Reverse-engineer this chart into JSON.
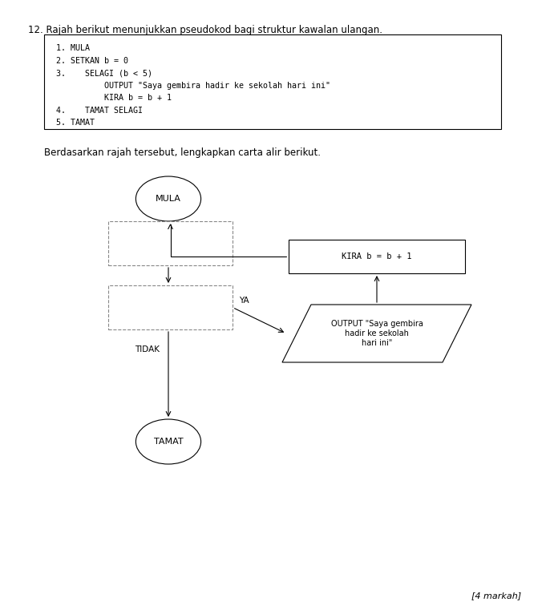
{
  "title_text": "12. Rajah berikut menunjukkan pseudokod bagi struktur kawalan ulangan.",
  "pseudocode_lines": [
    "1. MULA",
    "2. SETKAN b = 0",
    "3.    SELAGI (b < 5)",
    "          OUTPUT \"Saya gembira hadir ke sekolah hari ini\"",
    "          KIRA b = b + 1",
    "4.    TAMAT SELAGI",
    "5. TAMAT"
  ],
  "subtitle_text": "Berdasarkan rajah tersebut, lengkapkan carta alir berikut.",
  "markah_text": "[4 markah]",
  "bg_color": "#ffffff",
  "text_color": "#000000",
  "border_color": "#000000",
  "dashed_color": "#888888",
  "flowchart": {
    "mula_label": "MULA",
    "tamat_label": "TAMAT",
    "ya_label": "YA",
    "tidak_label": "TIDAK",
    "kira_label": "KIRA b = b + 1",
    "output_label": "OUTPUT \"Saya gembira\nhadir ke sekolah\nhari ini\""
  }
}
